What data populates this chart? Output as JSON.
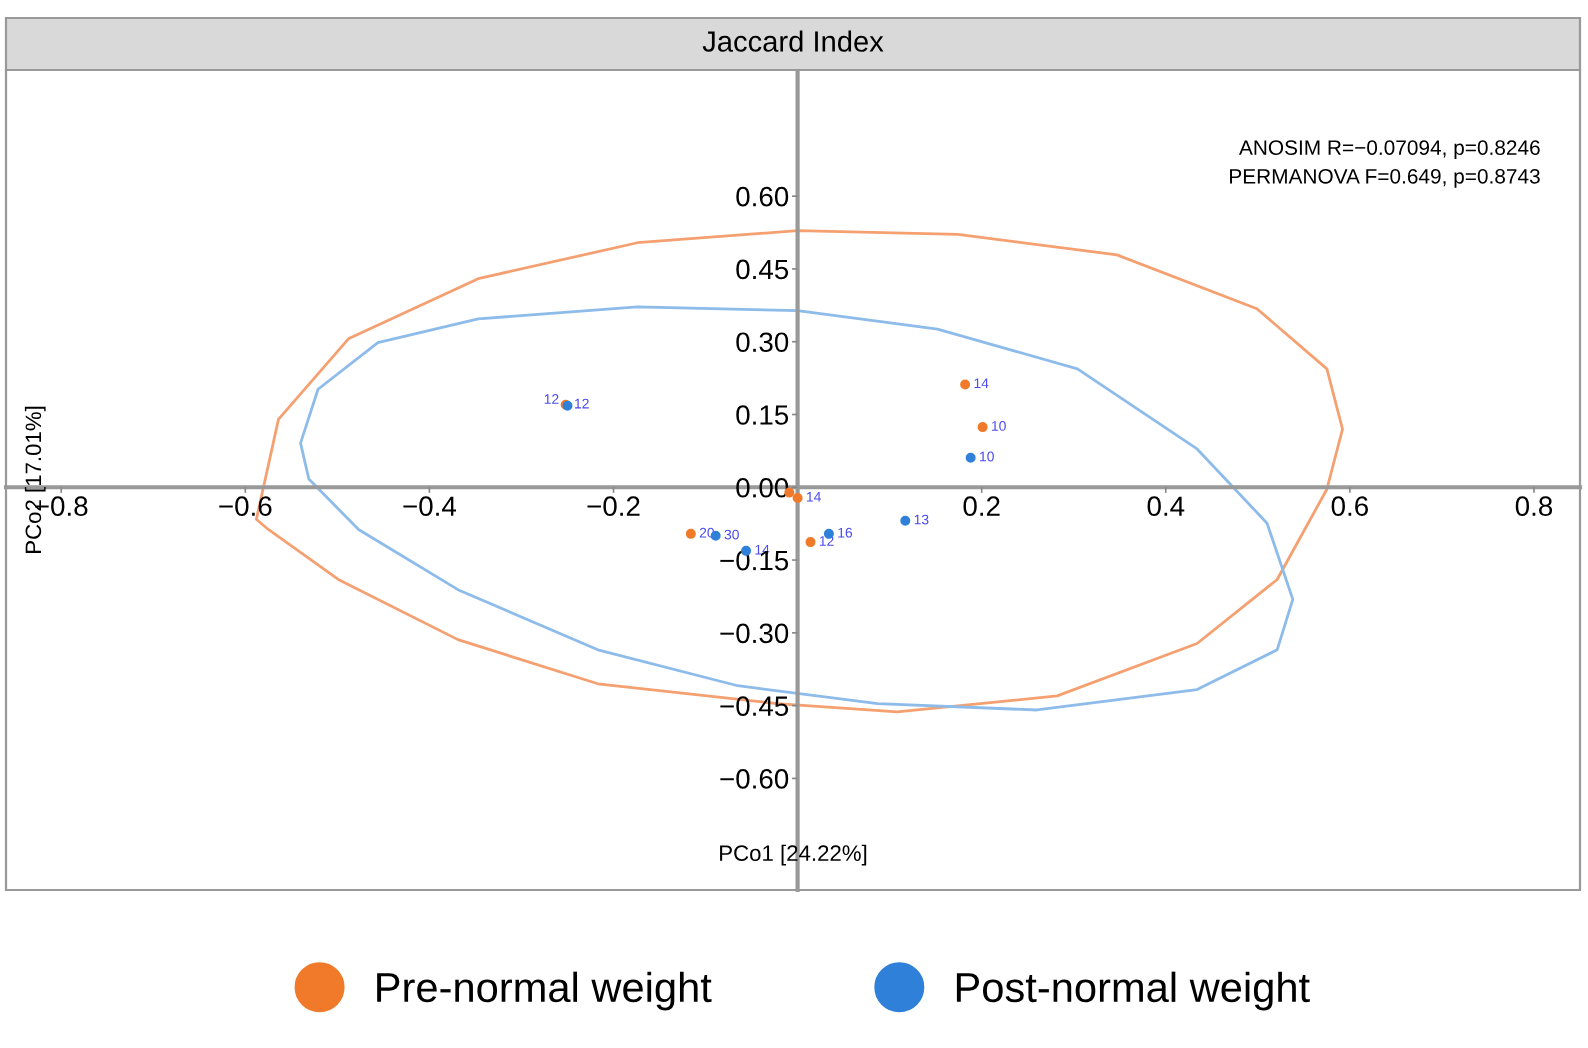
{
  "chart_data": {
    "type": "scatter",
    "title": "Jaccard Index",
    "xlabel": "PCo1 [24.22%]",
    "ylabel": "PCo2 [17.01%]",
    "xlim": [
      -0.86,
      0.85
    ],
    "ylim": [
      -0.83,
      0.86
    ],
    "xticks": [
      {
        "value": -0.8,
        "label": "−0.8"
      },
      {
        "value": -0.6,
        "label": "−0.6"
      },
      {
        "value": -0.4,
        "label": "−0.4"
      },
      {
        "value": -0.2,
        "label": "−0.2"
      },
      {
        "value": 0.2,
        "label": "0.2"
      },
      {
        "value": 0.4,
        "label": "0.4"
      },
      {
        "value": 0.6,
        "label": "0.6"
      },
      {
        "value": 0.8,
        "label": "0.8"
      }
    ],
    "yticks": [
      {
        "value": -0.6,
        "label": "−0.60"
      },
      {
        "value": -0.45,
        "label": "−0.45"
      },
      {
        "value": -0.3,
        "label": "−0.30"
      },
      {
        "value": -0.15,
        "label": "−0.15"
      },
      {
        "value": 0,
        "label": "0.00"
      },
      {
        "value": 0.15,
        "label": "0.15"
      },
      {
        "value": 0.3,
        "label": "0.30"
      },
      {
        "value": 0.45,
        "label": "0.45"
      },
      {
        "value": 0.6,
        "label": "0.60"
      }
    ],
    "grid": false,
    "legend": "bottom",
    "marker": "circle",
    "series": [
      {
        "name": "Pre-normal weight",
        "color": "#f07a2a",
        "x": [
          -0.252,
          -0.116,
          -0.009,
          0.0,
          0.014,
          0.182,
          0.201
        ],
        "values": [
          0.17,
          -0.096,
          -0.011,
          -0.022,
          -0.113,
          0.212,
          0.124
        ]
      },
      {
        "name": "Post-normal weight",
        "color": "#2f80d8",
        "x": [
          -0.25,
          -0.089,
          -0.056,
          0.034,
          0.117,
          0.188
        ],
        "values": [
          0.168,
          -0.1,
          -0.131,
          -0.096,
          -0.069,
          0.061
        ]
      }
    ],
    "annotations": [
      "ANOSIM R=−0.07094, p=0.8246",
      "PERMANOVA F=0.649, p=0.8743",
      {
        "text": "12",
        "x": -0.252,
        "y": 0.17
      },
      {
        "text": "20",
        "x": -0.116,
        "y": -0.096
      },
      {
        "text": "14",
        "x": 0.0,
        "y": -0.022
      },
      {
        "text": "12",
        "x": 0.014,
        "y": -0.113
      },
      {
        "text": "14",
        "x": 0.182,
        "y": 0.212
      },
      {
        "text": "10",
        "x": 0.201,
        "y": 0.124
      },
      {
        "text": "12",
        "x": -0.25,
        "y": 0.168
      },
      {
        "text": "30",
        "x": -0.089,
        "y": -0.1
      },
      {
        "text": "14",
        "x": -0.056,
        "y": -0.131
      },
      {
        "text": "16",
        "x": 0.034,
        "y": -0.096
      },
      {
        "text": "13",
        "x": 0.117,
        "y": -0.069
      },
      {
        "text": "10",
        "x": 0.188,
        "y": 0.061
      }
    ]
  }
}
